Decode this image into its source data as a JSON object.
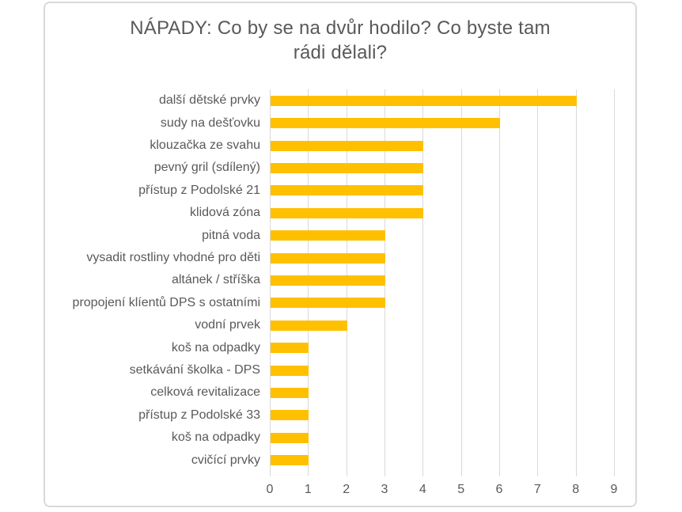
{
  "chart_data": {
    "type": "bar",
    "orientation": "horizontal",
    "title": "NÁPADY: Co by se na dvůr hodilo? Co byste tam rádi dělali?",
    "title_lines": [
      "NÁPADY: Co by se na dvůr hodilo? Co byste tam",
      "rádi dělali?"
    ],
    "categories": [
      "další dětské prvky",
      "sudy na dešťovku",
      "klouzačka ze svahu",
      "pevný gril (sdílený)",
      "přístup z Podolské 21",
      "klidová zóna",
      "pitná voda",
      "vysadit rostliny vhodné pro děti",
      "altánek / stříška",
      "propojení klíentů DPS s ostatními",
      "vodní prvek",
      "koš na odpadky",
      "setkávání školka - DPS",
      "celková revitalizace",
      "přístup z Podolské 33",
      "koš na odpadky",
      "cvičící prvky"
    ],
    "values": [
      8,
      6,
      4,
      4,
      4,
      4,
      3,
      3,
      3,
      3,
      2,
      1,
      1,
      1,
      1,
      1,
      1
    ],
    "xlabel": "",
    "ylabel": "",
    "xlim": [
      0,
      9
    ],
    "x_ticks": [
      0,
      1,
      2,
      3,
      4,
      5,
      6,
      7,
      8,
      9
    ],
    "grid": true,
    "legend": false,
    "colors": {
      "bar": "#ffc000",
      "text": "#595959",
      "gridline": "#d9d9d9",
      "frame_border": "#d9d9d9",
      "background": "#ffffff"
    }
  }
}
